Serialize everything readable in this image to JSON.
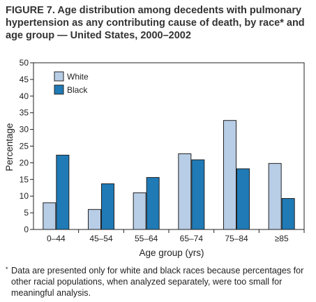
{
  "title": "FIGURE 7. Age distribution among decedents with pulmonary hypertension as any contributing cause of death, by race* and age group — United States, 2000–2002",
  "footnote": {
    "marker": "*",
    "text": "Data are presented only for white and black races because percentages for other racial populations, when analyzed separately, were too small for meaningful analysis."
  },
  "chart_data": {
    "type": "bar",
    "title": "",
    "xlabel": "Age group (yrs)",
    "ylabel": "Percentage",
    "ylim": [
      0,
      50
    ],
    "yticks": [
      0,
      5,
      10,
      15,
      20,
      25,
      30,
      35,
      40,
      45,
      50
    ],
    "grid": false,
    "legend_position": "top-left",
    "categories": [
      "0–44",
      "45–54",
      "55–64",
      "65–74",
      "75–84",
      "≥85"
    ],
    "series": [
      {
        "name": "White",
        "color": "#b8cde6",
        "values": [
          8,
          6,
          11,
          22.7,
          32.7,
          19.8
        ]
      },
      {
        "name": "Black",
        "color": "#1f7ab6",
        "values": [
          22.3,
          13.7,
          15.6,
          20.9,
          18.2,
          9.3
        ]
      }
    ]
  }
}
